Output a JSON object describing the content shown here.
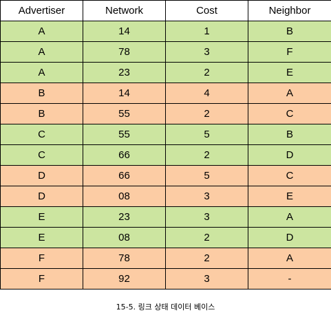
{
  "table": {
    "headers": [
      "Advertiser",
      "Network",
      "Cost",
      "Neighbor"
    ],
    "rows": [
      {
        "cells": [
          "A",
          "14",
          "1",
          "B"
        ],
        "color": "#cce5a0"
      },
      {
        "cells": [
          "A",
          "78",
          "3",
          "F"
        ],
        "color": "#cce5a0"
      },
      {
        "cells": [
          "A",
          "23",
          "2",
          "E"
        ],
        "color": "#cce5a0"
      },
      {
        "cells": [
          "B",
          "14",
          "4",
          "A"
        ],
        "color": "#fccca4"
      },
      {
        "cells": [
          "B",
          "55",
          "2",
          "C"
        ],
        "color": "#fccca4"
      },
      {
        "cells": [
          "C",
          "55",
          "5",
          "B"
        ],
        "color": "#cce5a0"
      },
      {
        "cells": [
          "C",
          "66",
          "2",
          "D"
        ],
        "color": "#cce5a0"
      },
      {
        "cells": [
          "D",
          "66",
          "5",
          "C"
        ],
        "color": "#fccca4"
      },
      {
        "cells": [
          "D",
          "08",
          "3",
          "E"
        ],
        "color": "#fccca4"
      },
      {
        "cells": [
          "E",
          "23",
          "3",
          "A"
        ],
        "color": "#cce5a0"
      },
      {
        "cells": [
          "E",
          "08",
          "2",
          "D"
        ],
        "color": "#cce5a0"
      },
      {
        "cells": [
          "F",
          "78",
          "2",
          "A"
        ],
        "color": "#fccca4"
      },
      {
        "cells": [
          "F",
          "92",
          "3",
          "-"
        ],
        "color": "#fccca4"
      }
    ]
  },
  "caption": "15-5. 링크 상태 데이터 베이스"
}
